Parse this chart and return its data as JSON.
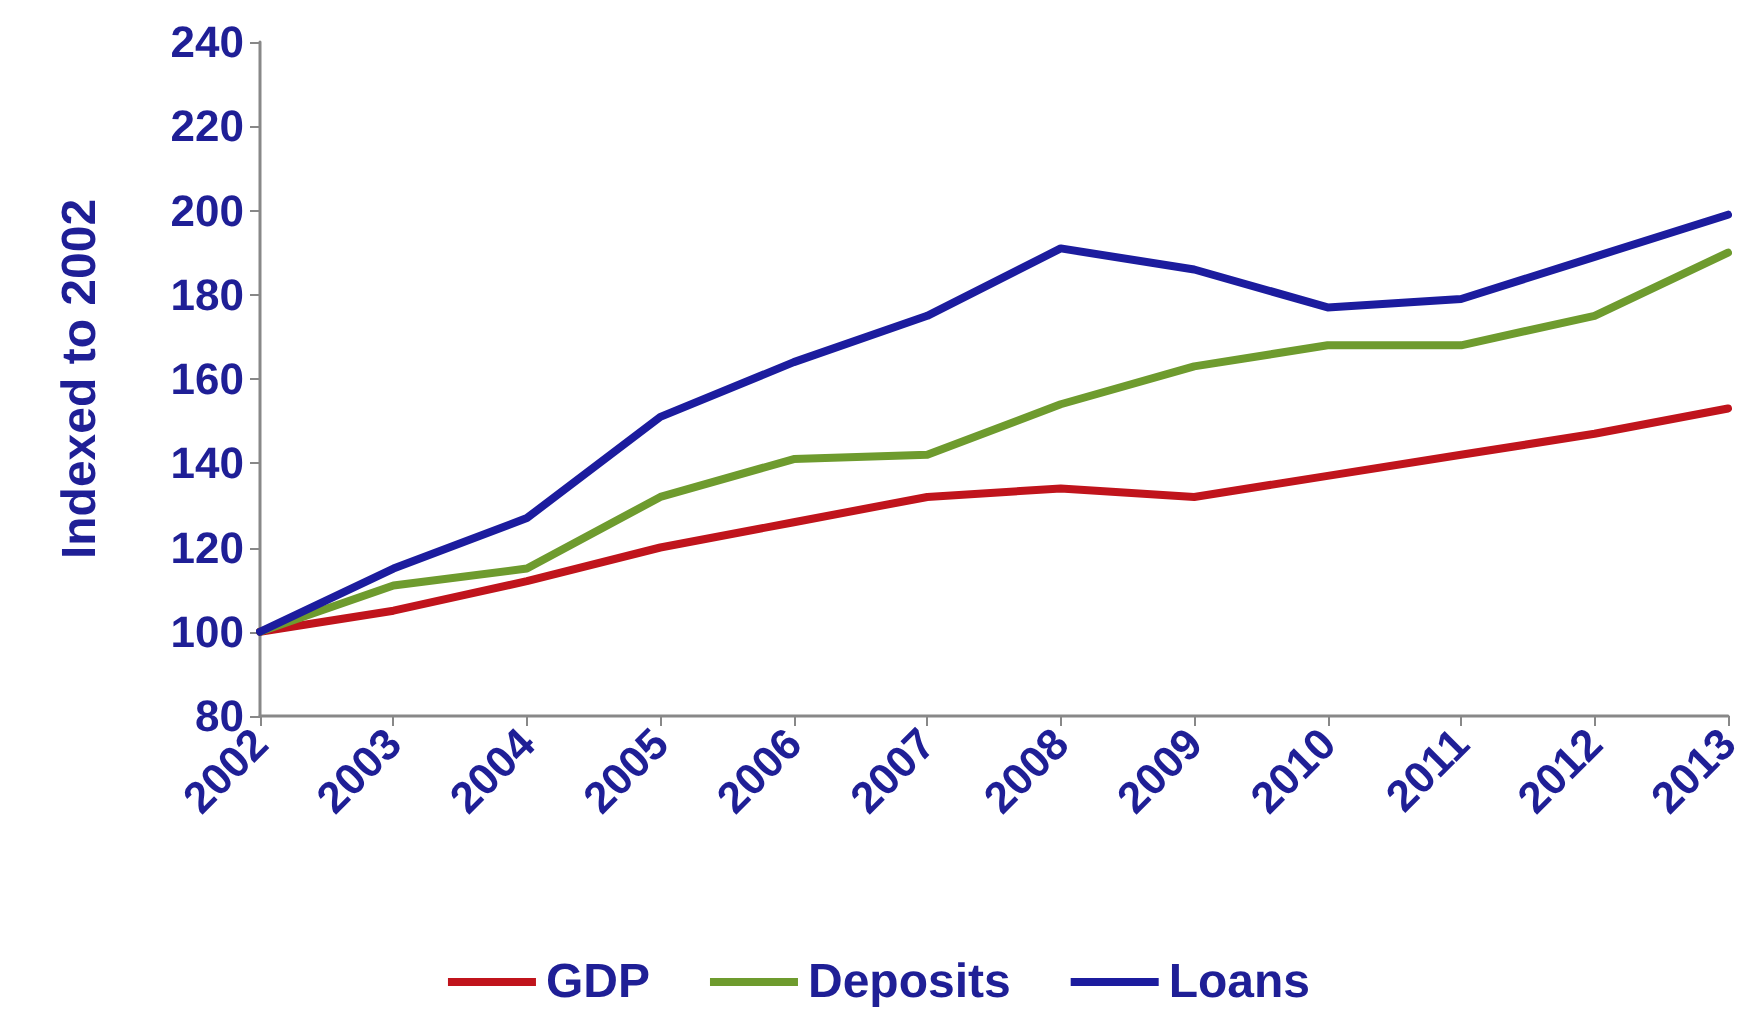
{
  "chart_data": {
    "type": "line",
    "ylabel": "Indexed to 2002",
    "categories": [
      "2002",
      "2003",
      "2004",
      "2005",
      "2006",
      "2007",
      "2008",
      "2009",
      "2010",
      "2011",
      "2012",
      "2013"
    ],
    "series": [
      {
        "name": "GDP",
        "color": "#c0141c",
        "values": [
          100,
          105,
          112,
          120,
          126,
          132,
          134,
          132,
          137,
          142,
          147,
          153
        ]
      },
      {
        "name": "Deposits",
        "color": "#6e9b2e",
        "values": [
          100,
          111,
          115,
          132,
          141,
          142,
          154,
          163,
          168,
          168,
          175,
          190
        ]
      },
      {
        "name": "Loans",
        "color": "#1c1c9e",
        "values": [
          100,
          115,
          127,
          151,
          164,
          175,
          191,
          186,
          177,
          179,
          189,
          199
        ]
      }
    ],
    "ylim": [
      80,
      240
    ],
    "yticks": [
      80,
      100,
      120,
      140,
      160,
      180,
      200,
      220,
      240
    ],
    "grid": false,
    "legend": "bottom",
    "marker": "none",
    "line_style": "solid"
  }
}
